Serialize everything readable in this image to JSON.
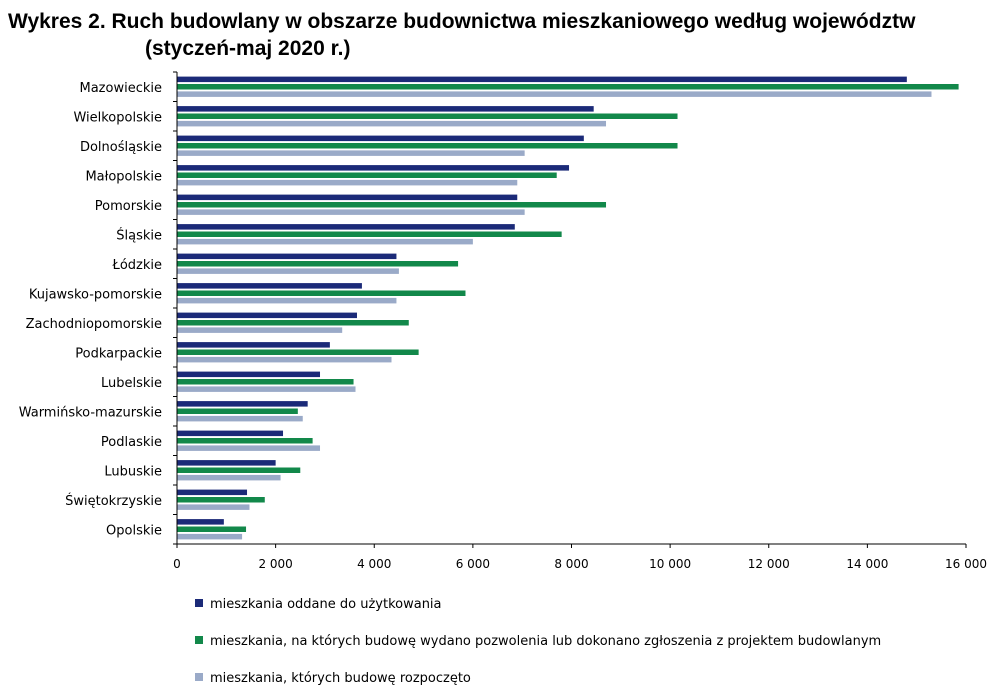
{
  "chart_data": {
    "type": "bar",
    "orientation": "horizontal",
    "title": "Wykres 2. Ruch budowlany w obszarze budownictwa mieszkaniowego według województw",
    "subtitle": "(styczeń-maj 2020 r.)",
    "xlabel": "",
    "ylabel": "",
    "xlim": [
      0,
      16000
    ],
    "x_ticks": [
      0,
      2000,
      4000,
      6000,
      8000,
      10000,
      12000,
      14000,
      16000
    ],
    "x_tick_labels": [
      "0",
      "2 000",
      "4 000",
      "6 000",
      "8 000",
      "10 000",
      "12 000",
      "14 000",
      "16 000"
    ],
    "grid": false,
    "legend_position": "bottom",
    "categories": [
      "Mazowieckie",
      "Wielkopolskie",
      "Dolnośląskie",
      "Małopolskie",
      "Pomorskie",
      "Śląskie",
      "Łódzkie",
      "Kujawsko-pomorskie",
      "Zachodniopomorskie",
      "Podkarpackie",
      "Lubelskie",
      "Warmińsko-mazurskie",
      "Podlaskie",
      "Lubuskie",
      "Świętokrzyskie",
      "Opolskie"
    ],
    "series": [
      {
        "name": "mieszkania oddane do użytkowania",
        "color": "#1b2a78",
        "values": [
          14800,
          8450,
          8250,
          7950,
          6900,
          6850,
          4450,
          3750,
          3650,
          3100,
          2900,
          2650,
          2150,
          2000,
          1420,
          950
        ]
      },
      {
        "name": "mieszkania, na których budowę wydano pozwolenia lub dokonano zgłoszenia z projektem budowlanym",
        "color": "#12884a",
        "values": [
          15850,
          10150,
          10150,
          7700,
          8700,
          7800,
          5700,
          5850,
          4700,
          4900,
          3580,
          2450,
          2750,
          2500,
          1780,
          1400
        ]
      },
      {
        "name": "mieszkania, których budowę rozpoczęto",
        "color": "#9aaac8",
        "values": [
          15300,
          8700,
          7050,
          6900,
          7050,
          6000,
          4500,
          4450,
          3350,
          4350,
          3620,
          2550,
          2900,
          2100,
          1470,
          1320
        ]
      }
    ]
  }
}
